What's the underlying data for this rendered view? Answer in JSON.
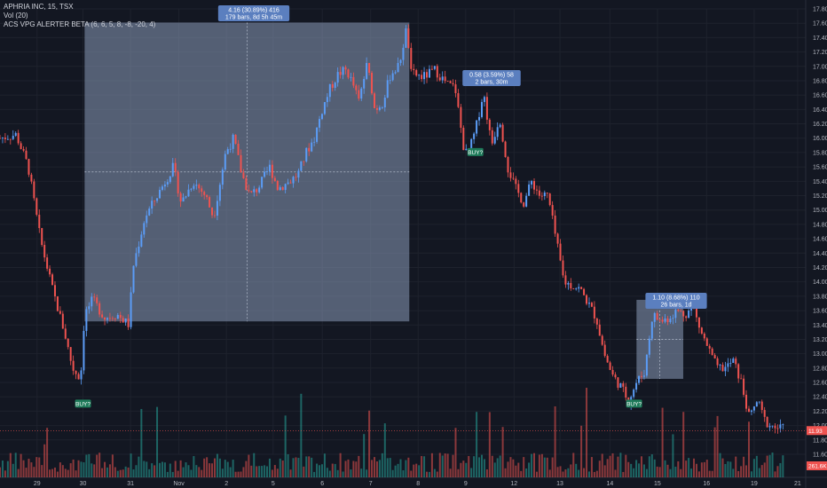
{
  "legend": {
    "symbol_line": "APHRIA INC, 15, TSX",
    "vol_line": "Vol (20)",
    "indicator_line": "ACS VPG ALERTER BETA (6, 6, 5, 8, -8, -20, 4)"
  },
  "colors": {
    "background": "#131722",
    "up": "#5b9cf6",
    "down": "#ef5350",
    "vol_up": "#26a69a",
    "vol_down": "#ef5350",
    "range_box": "#8a9ab8",
    "annotation": "#5b7fbf",
    "buy_label": "#1e7b5a",
    "grid": "#1e222d"
  },
  "chart_data": {
    "type": "candlestick",
    "y_axis": {
      "min": 11.6,
      "max": 17.8,
      "ticks": [
        "17.80",
        "17.60",
        "17.40",
        "17.20",
        "17.00",
        "16.80",
        "16.60",
        "16.40",
        "16.20",
        "16.00",
        "15.80",
        "15.60",
        "15.40",
        "15.20",
        "15.00",
        "14.80",
        "14.60",
        "14.40",
        "14.20",
        "14.00",
        "13.80",
        "13.60",
        "13.40",
        "13.20",
        "13.00",
        "12.80",
        "12.60",
        "12.40",
        "12.20",
        "12.00",
        "11.80",
        "11.60"
      ]
    },
    "x_axis": {
      "labels": [
        "29",
        "30",
        "31",
        "Nov",
        "2",
        "5",
        "6",
        "7",
        "8",
        "9",
        "12",
        "13",
        "14",
        "15",
        "16",
        "19",
        "21"
      ],
      "positions": [
        0.046,
        0.103,
        0.162,
        0.222,
        0.281,
        0.339,
        0.4,
        0.46,
        0.519,
        0.578,
        0.638,
        0.695,
        0.757,
        0.816,
        0.877,
        0.936,
        0.99
      ]
    },
    "price_path": [
      [
        0.0,
        16.0
      ],
      [
        0.02,
        16.05
      ],
      [
        0.035,
        15.6
      ],
      [
        0.05,
        14.6
      ],
      [
        0.065,
        13.9
      ],
      [
        0.08,
        13.3
      ],
      [
        0.09,
        12.8
      ],
      [
        0.1,
        12.65
      ],
      [
        0.105,
        13.55
      ],
      [
        0.115,
        13.75
      ],
      [
        0.13,
        13.5
      ],
      [
        0.145,
        13.55
      ],
      [
        0.16,
        13.4
      ],
      [
        0.165,
        14.2
      ],
      [
        0.18,
        14.9
      ],
      [
        0.2,
        15.3
      ],
      [
        0.215,
        15.6
      ],
      [
        0.225,
        15.1
      ],
      [
        0.24,
        15.4
      ],
      [
        0.255,
        15.2
      ],
      [
        0.265,
        14.9
      ],
      [
        0.28,
        15.8
      ],
      [
        0.29,
        16.0
      ],
      [
        0.3,
        15.5
      ],
      [
        0.31,
        15.2
      ],
      [
        0.32,
        15.3
      ],
      [
        0.335,
        15.6
      ],
      [
        0.345,
        15.3
      ],
      [
        0.36,
        15.4
      ],
      [
        0.37,
        15.5
      ],
      [
        0.38,
        15.8
      ],
      [
        0.39,
        16.0
      ],
      [
        0.4,
        16.4
      ],
      [
        0.41,
        16.7
      ],
      [
        0.42,
        16.9
      ],
      [
        0.43,
        16.95
      ],
      [
        0.44,
        16.7
      ],
      [
        0.445,
        16.5
      ],
      [
        0.455,
        17.0
      ],
      [
        0.46,
        16.8
      ],
      [
        0.465,
        16.4
      ],
      [
        0.475,
        16.5
      ],
      [
        0.485,
        16.9
      ],
      [
        0.495,
        17.0
      ],
      [
        0.505,
        17.55
      ],
      [
        0.51,
        16.9
      ],
      [
        0.525,
        16.85
      ],
      [
        0.54,
        16.95
      ],
      [
        0.555,
        16.75
      ],
      [
        0.565,
        16.7
      ],
      [
        0.575,
        15.9
      ],
      [
        0.58,
        15.75
      ],
      [
        0.59,
        16.1
      ],
      [
        0.6,
        16.65
      ],
      [
        0.61,
        15.9
      ],
      [
        0.62,
        16.3
      ],
      [
        0.63,
        15.6
      ],
      [
        0.64,
        15.3
      ],
      [
        0.65,
        15.1
      ],
      [
        0.66,
        15.4
      ],
      [
        0.67,
        15.2
      ],
      [
        0.68,
        15.2
      ],
      [
        0.69,
        14.6
      ],
      [
        0.7,
        14.0
      ],
      [
        0.71,
        13.95
      ],
      [
        0.72,
        13.9
      ],
      [
        0.73,
        13.7
      ],
      [
        0.74,
        13.5
      ],
      [
        0.75,
        13.0
      ],
      [
        0.76,
        12.7
      ],
      [
        0.77,
        12.55
      ],
      [
        0.78,
        12.35
      ],
      [
        0.79,
        12.6
      ],
      [
        0.8,
        12.75
      ],
      [
        0.81,
        13.55
      ],
      [
        0.82,
        13.45
      ],
      [
        0.83,
        13.5
      ],
      [
        0.84,
        13.6
      ],
      [
        0.85,
        13.55
      ],
      [
        0.86,
        13.65
      ],
      [
        0.87,
        13.3
      ],
      [
        0.88,
        13.05
      ],
      [
        0.89,
        12.8
      ],
      [
        0.9,
        12.8
      ],
      [
        0.91,
        12.9
      ],
      [
        0.92,
        12.6
      ],
      [
        0.93,
        12.1
      ],
      [
        0.94,
        12.35
      ],
      [
        0.95,
        12.05
      ],
      [
        0.96,
        11.98
      ],
      [
        0.975,
        11.95
      ]
    ],
    "annotations": [
      {
        "line1": "4.16 (30.89%) 416",
        "line2": "179 bars, 8d 5h 45m"
      },
      {
        "line1": "0.58 (3.59%) 58",
        "line2": "2 bars, 30m"
      },
      {
        "line1": "1.10 (8.68%) 110",
        "line2": "26 bars, 1d"
      }
    ],
    "range_boxes": [
      {
        "x0": 0.105,
        "x1": 0.508,
        "y_low": 13.45,
        "y_high": 17.61
      },
      {
        "x0": 0.79,
        "x1": 0.848,
        "y_low": 12.65,
        "y_high": 13.75
      }
    ],
    "buy_signals": [
      {
        "label": "BUY?",
        "x": 0.103,
        "price": 12.3
      },
      {
        "label": "BUY?",
        "x": 0.59,
        "price": 15.8
      },
      {
        "label": "BUY?",
        "x": 0.787,
        "price": 12.3
      }
    ],
    "last_price": {
      "label": "11.93",
      "value": 11.93
    },
    "volume_label": {
      "label": "261.6K"
    }
  }
}
